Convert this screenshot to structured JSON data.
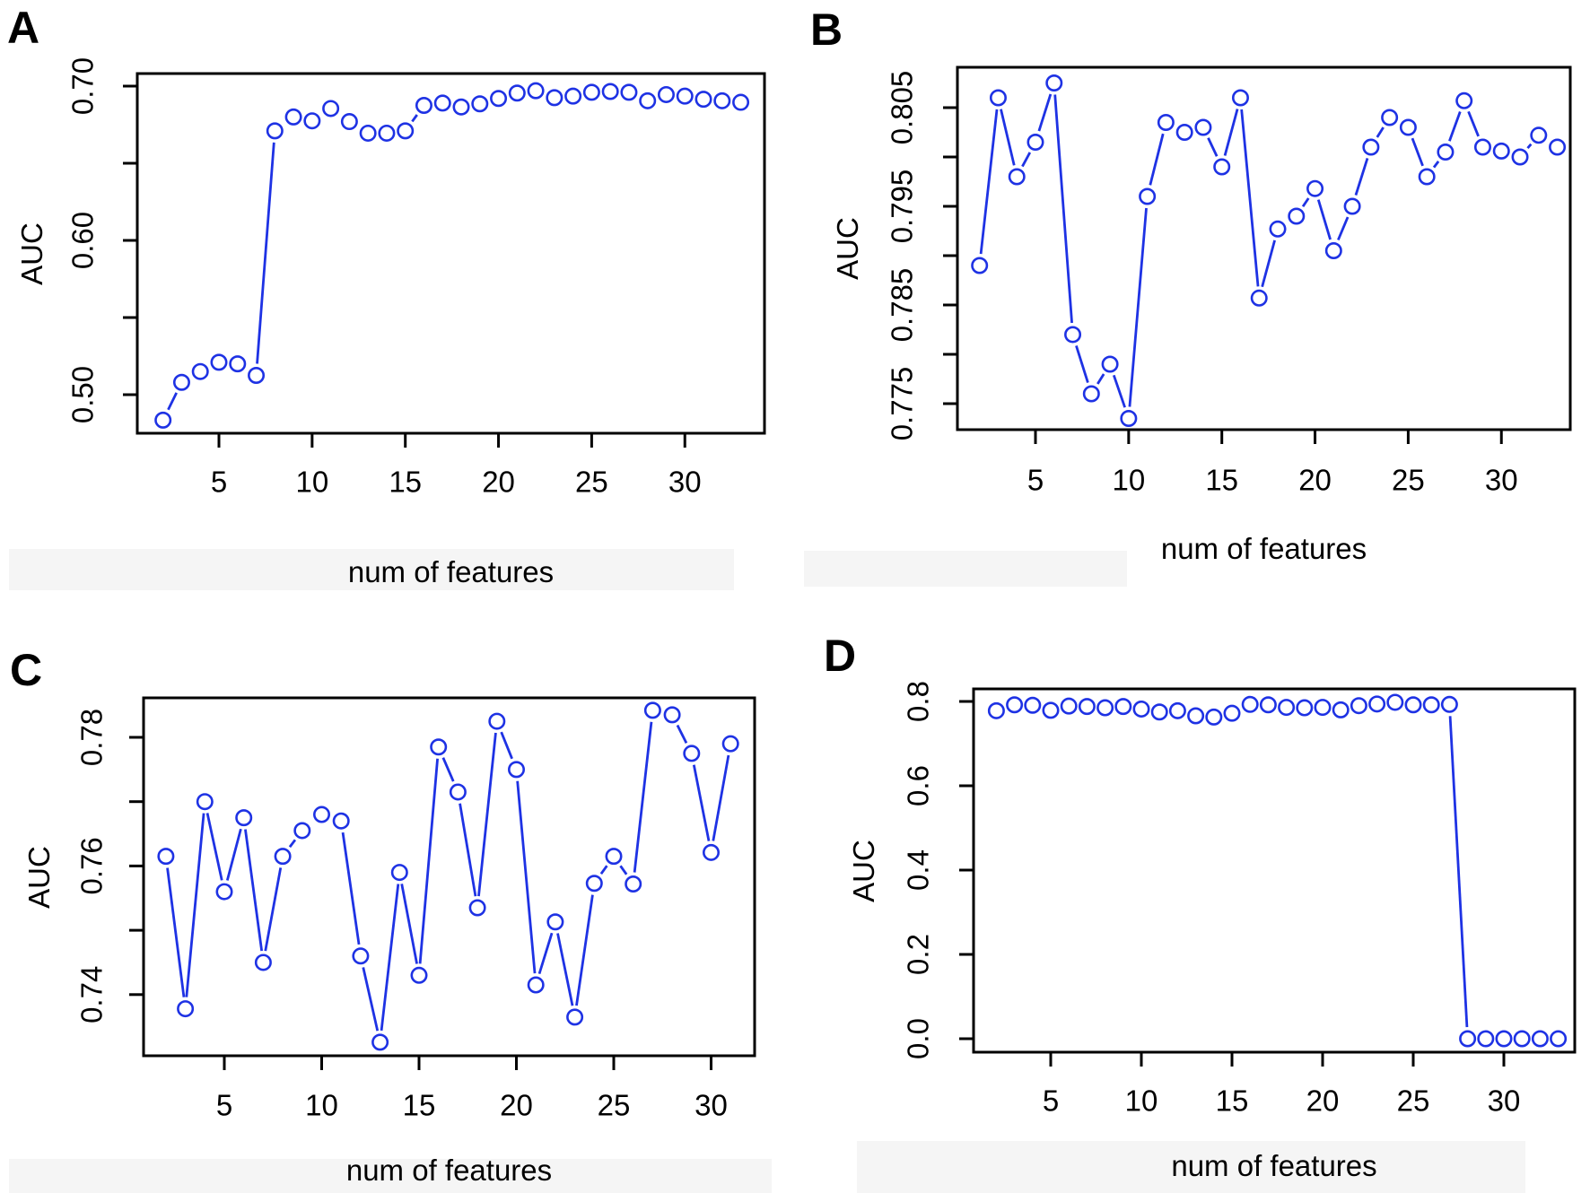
{
  "colors": {
    "series": "#1e32e4",
    "axis": "#000000",
    "background": "#ffffff",
    "artifact_strip": "#f5f5f5"
  },
  "chart_data": [
    {
      "panel": "A",
      "type": "line",
      "marker": "open-circle",
      "title": "",
      "xlabel": "num of features",
      "ylabel": "AUC",
      "grid": false,
      "legend": "none",
      "xlim": [
        0.62,
        34.27
      ],
      "ylim": [
        0.475,
        0.708
      ],
      "xticks": {
        "values": [
          5,
          10,
          15,
          20,
          25,
          30
        ],
        "labels": [
          "5",
          "10",
          "15",
          "20",
          "25",
          "30"
        ]
      },
      "yticks": {
        "major_values": [
          0.5,
          0.6,
          0.7
        ],
        "major_labels": [
          "0.50",
          "0.60",
          "0.70"
        ],
        "minor_values": [
          0.55,
          0.65
        ]
      },
      "x": [
        2,
        3,
        4,
        5,
        6,
        7,
        8,
        9,
        10,
        11,
        12,
        13,
        14,
        15,
        16,
        17,
        18,
        19,
        20,
        21,
        22,
        23,
        24,
        25,
        26,
        27,
        28,
        29,
        30,
        31,
        32,
        33
      ],
      "y": [
        0.4835,
        0.508,
        0.515,
        0.521,
        0.52,
        0.5125,
        0.671,
        0.68,
        0.6775,
        0.6855,
        0.677,
        0.6695,
        0.6695,
        0.671,
        0.6875,
        0.689,
        0.6865,
        0.6885,
        0.692,
        0.6955,
        0.697,
        0.6925,
        0.6935,
        0.696,
        0.6965,
        0.696,
        0.6905,
        0.6945,
        0.6935,
        0.6915,
        0.6905,
        0.6895
      ]
    },
    {
      "panel": "B",
      "type": "line",
      "marker": "open-circle",
      "title": "",
      "xlabel": "num of features",
      "ylabel": "AUC",
      "grid": false,
      "legend": "none",
      "xlim": [
        0.81,
        33.69
      ],
      "ylim": [
        0.7724,
        0.8091
      ],
      "xticks": {
        "values": [
          5,
          10,
          15,
          20,
          25,
          30
        ],
        "labels": [
          "5",
          "10",
          "15",
          "20",
          "25",
          "30"
        ]
      },
      "yticks": {
        "major_values": [
          0.775,
          0.785,
          0.795,
          0.805
        ],
        "major_labels": [
          "0.775",
          "0.785",
          "0.795",
          "0.805"
        ],
        "minor_values": [
          0.78,
          0.79,
          0.8
        ]
      },
      "x": [
        2,
        3,
        4,
        5,
        6,
        7,
        8,
        9,
        10,
        11,
        12,
        13,
        14,
        15,
        16,
        17,
        18,
        19,
        20,
        21,
        22,
        23,
        24,
        25,
        26,
        27,
        28,
        29,
        30,
        31,
        32,
        33
      ],
      "y": [
        0.789,
        0.806,
        0.798,
        0.8015,
        0.8075,
        0.782,
        0.776,
        0.779,
        0.7735,
        0.796,
        0.8035,
        0.8025,
        0.803,
        0.799,
        0.806,
        0.7857,
        0.7927,
        0.794,
        0.7968,
        0.7905,
        0.795,
        0.801,
        0.804,
        0.803,
        0.798,
        0.8005,
        0.8057,
        0.801,
        0.8006,
        0.8,
        0.8022,
        0.801
      ]
    },
    {
      "panel": "C",
      "type": "line",
      "marker": "open-circle",
      "title": "",
      "xlabel": "num of features",
      "ylabel": "AUC",
      "grid": false,
      "legend": "none",
      "xlim": [
        0.85,
        32.24
      ],
      "ylim": [
        0.7305,
        0.7861
      ],
      "xticks": {
        "values": [
          5,
          10,
          15,
          20,
          25,
          30
        ],
        "labels": [
          "5",
          "10",
          "15",
          "20",
          "25",
          "30"
        ]
      },
      "yticks": {
        "major_values": [
          0.74,
          0.76,
          0.78
        ],
        "major_labels": [
          "0.74",
          "0.76",
          "0.78"
        ],
        "minor_values": [
          0.75,
          0.77
        ]
      },
      "x": [
        2,
        3,
        4,
        5,
        6,
        7,
        8,
        9,
        10,
        11,
        12,
        13,
        14,
        15,
        16,
        17,
        18,
        19,
        20,
        21,
        22,
        23,
        24,
        25,
        26,
        27,
        28,
        29,
        30,
        31
      ],
      "y": [
        0.7615,
        0.7378,
        0.77,
        0.756,
        0.7675,
        0.745,
        0.7615,
        0.7655,
        0.768,
        0.767,
        0.746,
        0.7326,
        0.759,
        0.743,
        0.7785,
        0.7715,
        0.7535,
        0.7825,
        0.775,
        0.7415,
        0.7513,
        0.7365,
        0.7573,
        0.7615,
        0.7572,
        0.7842,
        0.7835,
        0.7775,
        0.7621,
        0.779
      ]
    },
    {
      "panel": "D",
      "type": "line",
      "marker": "open-circle",
      "title": "",
      "xlabel": "num of features",
      "ylabel": "AUC",
      "grid": false,
      "legend": "none",
      "xlim": [
        0.74,
        33.91
      ],
      "ylim": [
        -0.032,
        0.83
      ],
      "xticks": {
        "values": [
          5,
          10,
          15,
          20,
          25,
          30
        ],
        "labels": [
          "5",
          "10",
          "15",
          "20",
          "25",
          "30"
        ]
      },
      "yticks": {
        "major_values": [
          0.0,
          0.2,
          0.4,
          0.6,
          0.8
        ],
        "major_labels": [
          "0.0",
          "0.2",
          "0.4",
          "0.6",
          "0.8"
        ],
        "minor_values": []
      },
      "x": [
        2,
        3,
        4,
        5,
        6,
        7,
        8,
        9,
        10,
        11,
        12,
        13,
        14,
        15,
        16,
        17,
        18,
        19,
        20,
        21,
        22,
        23,
        24,
        25,
        26,
        27,
        28,
        29,
        30,
        31,
        32,
        33
      ],
      "y": [
        0.778,
        0.792,
        0.791,
        0.779,
        0.789,
        0.788,
        0.785,
        0.788,
        0.782,
        0.775,
        0.778,
        0.766,
        0.763,
        0.772,
        0.793,
        0.792,
        0.786,
        0.785,
        0.786,
        0.78,
        0.79,
        0.794,
        0.798,
        0.792,
        0.792,
        0.793,
        0,
        0,
        0,
        0,
        0,
        0
      ]
    }
  ]
}
